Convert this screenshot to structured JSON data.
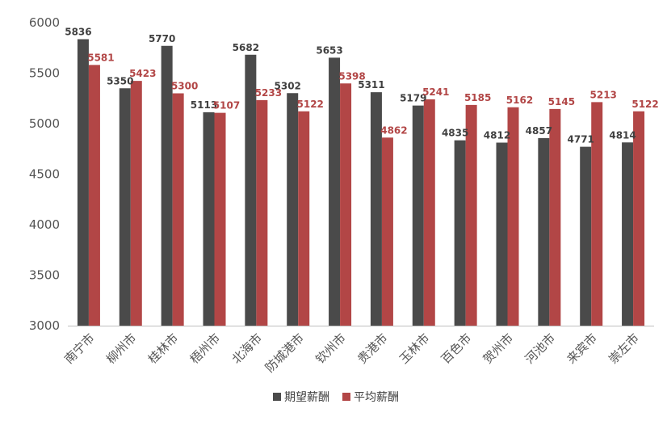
{
  "chart_data": {
    "type": "bar",
    "title": "",
    "xlabel": "",
    "ylabel": "",
    "ylim": [
      3000,
      6000
    ],
    "yticks": [
      3000,
      3500,
      4000,
      4500,
      5000,
      5500,
      6000
    ],
    "grid": false,
    "legend_position": "bottom",
    "categories": [
      "南宁市",
      "柳州市",
      "桂林市",
      "梧州市",
      "北海市",
      "防城港市",
      "钦州市",
      "贵港市",
      "玉林市",
      "百色市",
      "贺州市",
      "河池市",
      "来宾市",
      "崇左市"
    ],
    "series": [
      {
        "name": "期望薪酬",
        "color": "#4a4a4a",
        "label_color": "#404040",
        "values": [
          5836,
          5350,
          5770,
          5113,
          5682,
          5302,
          5653,
          5311,
          5179,
          4835,
          4812,
          4857,
          4771,
          4814
        ]
      },
      {
        "name": "平均薪酬",
        "color": "#b24646",
        "label_color": "#b24646",
        "values": [
          5581,
          5423,
          5300,
          5107,
          5233,
          5122,
          5398,
          4862,
          5241,
          5185,
          5162,
          5145,
          5213,
          5122
        ]
      }
    ]
  }
}
